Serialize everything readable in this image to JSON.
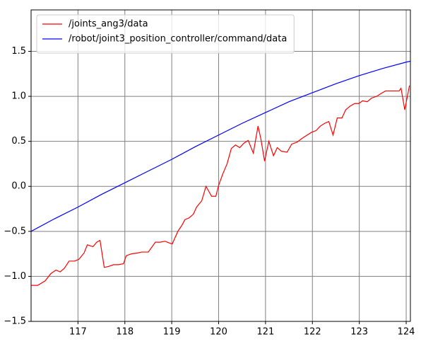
{
  "chart_data": {
    "type": "line",
    "xlim": [
      116.0,
      124.09
    ],
    "ylim": [
      -1.5,
      1.96
    ],
    "xticks": [
      117,
      118,
      119,
      120,
      121,
      122,
      123,
      124
    ],
    "yticks": [
      {
        "value": -1.5,
        "label": "−1.5"
      },
      {
        "value": -1.0,
        "label": "−1.0"
      },
      {
        "value": -0.5,
        "label": "−0.5"
      },
      {
        "value": 0.0,
        "label": "0.0"
      },
      0.5,
      {
        "value": 1.0,
        "label": "1.0"
      },
      1.5
    ],
    "grid": true,
    "legend": "upper left",
    "series": [
      {
        "name": "/joints_ang3/data",
        "color": "#ff0000",
        "x": [
          116.0,
          116.14,
          116.3,
          116.42,
          116.53,
          116.62,
          116.71,
          116.81,
          116.93,
          117.02,
          117.13,
          117.2,
          117.32,
          117.4,
          117.47,
          117.56,
          117.65,
          117.76,
          117.86,
          117.97,
          118.03,
          118.14,
          118.27,
          118.36,
          118.5,
          118.65,
          118.75,
          118.86,
          118.95,
          119.01,
          119.13,
          119.22,
          119.28,
          119.37,
          119.46,
          119.53,
          119.64,
          119.73,
          119.85,
          119.94,
          120.0,
          120.09,
          120.18,
          120.27,
          120.36,
          120.45,
          120.54,
          120.63,
          120.74,
          120.84,
          120.9,
          120.98,
          121.07,
          121.17,
          121.25,
          121.34,
          121.46,
          121.56,
          121.67,
          121.77,
          121.86,
          121.98,
          122.08,
          122.17,
          122.26,
          122.35,
          122.44,
          122.53,
          122.63,
          122.71,
          122.8,
          122.9,
          122.99,
          123.07,
          123.17,
          123.26,
          123.37,
          123.46,
          123.56,
          123.67,
          123.76,
          123.85,
          123.89,
          123.97,
          124.07
        ],
        "values": [
          -1.1,
          -1.1,
          -1.05,
          -0.97,
          -0.93,
          -0.95,
          -0.91,
          -0.83,
          -0.83,
          -0.81,
          -0.74,
          -0.65,
          -0.67,
          -0.62,
          -0.6,
          -0.9,
          -0.89,
          -0.87,
          -0.87,
          -0.86,
          -0.77,
          -0.75,
          -0.74,
          -0.73,
          -0.73,
          -0.62,
          -0.62,
          -0.61,
          -0.63,
          -0.64,
          -0.5,
          -0.43,
          -0.37,
          -0.35,
          -0.31,
          -0.23,
          -0.16,
          0.0,
          -0.11,
          -0.11,
          0.01,
          0.14,
          0.25,
          0.42,
          0.46,
          0.43,
          0.48,
          0.51,
          0.37,
          0.67,
          0.53,
          0.28,
          0.5,
          0.34,
          0.43,
          0.39,
          0.38,
          0.47,
          0.49,
          0.53,
          0.56,
          0.6,
          0.62,
          0.67,
          0.7,
          0.72,
          0.57,
          0.76,
          0.76,
          0.85,
          0.89,
          0.92,
          0.92,
          0.95,
          0.94,
          0.98,
          1.0,
          1.03,
          1.06,
          1.06,
          1.06,
          1.06,
          1.09,
          0.85,
          1.12
        ]
      },
      {
        "name": "/robot/joint3_position_controller/command/data",
        "color": "#0000ff",
        "x": [
          116.0,
          116.5,
          117.0,
          117.5,
          118.0,
          118.5,
          119.0,
          119.5,
          120.0,
          120.5,
          121.0,
          121.5,
          122.0,
          122.5,
          123.0,
          123.5,
          124.0,
          124.09
        ],
        "values": [
          -0.5,
          -0.36,
          -0.23,
          -0.09,
          0.04,
          0.17,
          0.3,
          0.44,
          0.57,
          0.7,
          0.82,
          0.94,
          1.04,
          1.14,
          1.23,
          1.31,
          1.38,
          1.39
        ]
      }
    ]
  }
}
